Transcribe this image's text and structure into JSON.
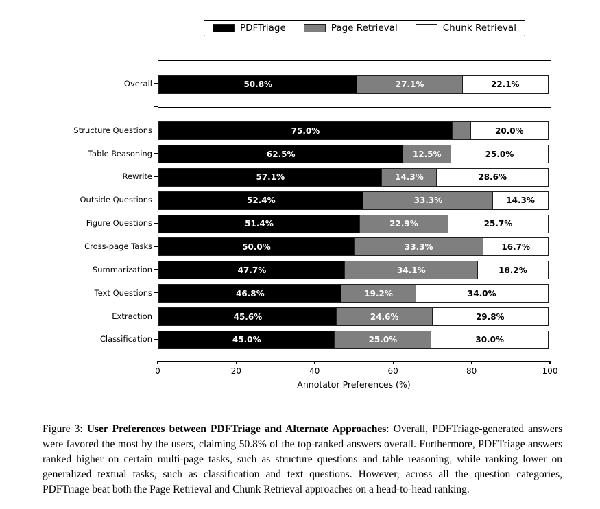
{
  "page": {
    "background": "#ffffff"
  },
  "legend": {
    "items": [
      {
        "name": "pdftriage",
        "label": "PDFTriage",
        "color": "#000000"
      },
      {
        "name": "page-retrieval",
        "label": "Page Retrieval",
        "color": "#7f7f7f"
      },
      {
        "name": "chunk-retrieval",
        "label": "Chunk Retrieval",
        "color": "#ffffff"
      }
    ]
  },
  "chart_data": {
    "type": "bar",
    "orientation": "horizontal",
    "stacked": true,
    "title": "",
    "xlabel": "Annotator Preferences (%)",
    "ylabel": "",
    "xlim": [
      0,
      100
    ],
    "xticks": [
      "0",
      "20",
      "40",
      "60",
      "80",
      "100"
    ],
    "grid": false,
    "legend_position": "top-center",
    "series_colors": [
      "#000000",
      "#7f7f7f",
      "#ffffff"
    ],
    "series_text_colors": [
      "#ffffff",
      "#ffffff",
      "#000000"
    ],
    "series_names": [
      "PDFTriage",
      "Page Retrieval",
      "Chunk Retrieval"
    ],
    "rows": [
      {
        "category": "Overall",
        "values": [
          50.8,
          27.1,
          22.1
        ],
        "labels": [
          "50.8%",
          "27.1%",
          "22.1%"
        ]
      },
      {
        "category": "",
        "separator": true
      },
      {
        "category": "Structure Questions",
        "values": [
          75.0,
          5.0,
          20.0
        ],
        "labels": [
          "75.0%",
          null,
          "20.0%"
        ]
      },
      {
        "category": "Table Reasoning",
        "values": [
          62.5,
          12.5,
          25.0
        ],
        "labels": [
          "62.5%",
          "12.5%",
          "25.0%"
        ]
      },
      {
        "category": "Rewrite",
        "values": [
          57.1,
          14.3,
          28.6
        ],
        "labels": [
          "57.1%",
          "14.3%",
          "28.6%"
        ]
      },
      {
        "category": "Outside Questions",
        "values": [
          52.4,
          33.3,
          14.3
        ],
        "labels": [
          "52.4%",
          "33.3%",
          "14.3%"
        ]
      },
      {
        "category": "Figure Questions",
        "values": [
          51.4,
          22.9,
          25.7
        ],
        "labels": [
          "51.4%",
          "22.9%",
          "25.7%"
        ]
      },
      {
        "category": "Cross-page Tasks",
        "values": [
          50.0,
          33.3,
          16.7
        ],
        "labels": [
          "50.0%",
          "33.3%",
          "16.7%"
        ]
      },
      {
        "category": "Summarization",
        "values": [
          47.7,
          34.1,
          18.2
        ],
        "labels": [
          "47.7%",
          "34.1%",
          "18.2%"
        ]
      },
      {
        "category": "Text Questions",
        "values": [
          46.8,
          19.2,
          34.0
        ],
        "labels": [
          "46.8%",
          "19.2%",
          "34.0%"
        ]
      },
      {
        "category": "Extraction",
        "values": [
          45.6,
          24.6,
          29.8
        ],
        "labels": [
          "45.6%",
          "24.6%",
          "29.8%"
        ]
      },
      {
        "category": "Classification",
        "values": [
          45.0,
          25.0,
          30.0
        ],
        "labels": [
          "45.0%",
          "25.0%",
          "30.0%"
        ]
      }
    ]
  },
  "caption": {
    "prefix": "Figure 3: ",
    "bold": "User Preferences between PDFTriage and Alternate Approaches",
    "rest": ":  Overall, PDFTriage-generated answers were favored the most by the users, claiming 50.8% of the top-ranked answers overall.  Furthermore, PDFTriage answers ranked higher on certain multi-page tasks, such as structure questions and table reasoning, while ranking lower on generalized textual tasks, such as classification and text questions.  However, across all the question categories, PDFTriage beat both the Page Retrieval and Chunk Retrieval approaches on a head-to-head ranking."
  }
}
